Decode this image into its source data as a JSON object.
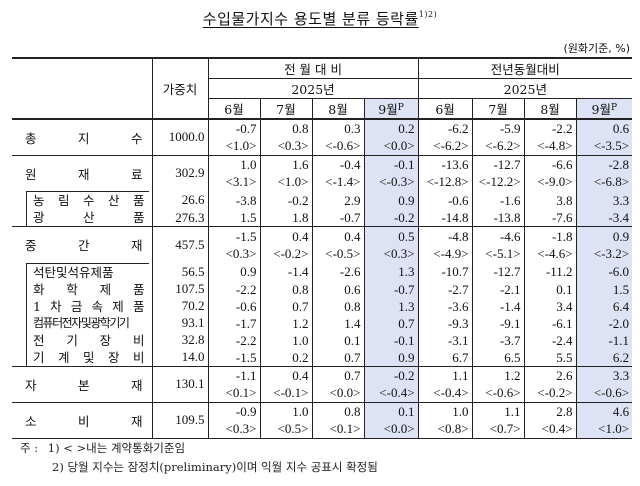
{
  "title": "수입물가지수 용도별 분류 등락률",
  "title_superscript": "1)2)",
  "unit": "(원화기준, %)",
  "header": {
    "weight": "가중치",
    "group_mom": "전 월 대 비",
    "group_yoy": "전년동월대비",
    "year": "2025년",
    "months": [
      "6월",
      "7월",
      "8월",
      "9월"
    ],
    "preliminary_mark": "P"
  },
  "rows": [
    {
      "label": "총지수",
      "chars": [
        "총",
        "지",
        "수"
      ],
      "level": 0,
      "weight": "1000.0",
      "mom": [
        "-0.7",
        "0.8",
        "0.3",
        "0.2"
      ],
      "mom_contract": [
        "<1.0>",
        "<0.3>",
        "<-0.6>",
        "<0.0>"
      ],
      "yoy": [
        "-6.2",
        "-5.9",
        "-2.2",
        "0.6"
      ],
      "yoy_contract": [
        "<-6.2>",
        "<-6.2>",
        "<-4.8>",
        "<-3.5>"
      ]
    },
    {
      "label": "원재료",
      "chars": [
        "원",
        "재",
        "료"
      ],
      "level": 0,
      "weight": "302.9",
      "mom": [
        "1.0",
        "1.6",
        "-0.4",
        "-0.1"
      ],
      "mom_contract": [
        "<3.1>",
        "<1.0>",
        "<-1.4>",
        "<-0.3>"
      ],
      "yoy": [
        "-13.6",
        "-12.7",
        "-6.6",
        "-2.8"
      ],
      "yoy_contract": [
        "<-12.8>",
        "<-12.2>",
        "<-9.0>",
        "<-6.8>"
      ]
    },
    {
      "label": "농림수산품",
      "chars": [
        "농",
        "림",
        "수",
        "산",
        "품"
      ],
      "level": 1,
      "weight": "26.6",
      "mom": [
        "-3.8",
        "-0.2",
        "2.9",
        "0.9"
      ],
      "yoy": [
        "-0.6",
        "-1.6",
        "3.8",
        "3.3"
      ]
    },
    {
      "label": "광산품",
      "chars": [
        "광",
        "산",
        "품"
      ],
      "level": 1,
      "weight": "276.3",
      "mom": [
        "1.5",
        "1.8",
        "-0.7",
        "-0.2"
      ],
      "yoy": [
        "-14.8",
        "-13.8",
        "-7.6",
        "-3.4"
      ]
    },
    {
      "label": "중간재",
      "chars": [
        "중",
        "간",
        "재"
      ],
      "level": 0,
      "weight": "457.5",
      "mom": [
        "-1.5",
        "0.4",
        "0.4",
        "0.5"
      ],
      "mom_contract": [
        "<0.3>",
        "<-0.2>",
        "<-0.5>",
        "<0.3>"
      ],
      "yoy": [
        "-4.8",
        "-4.6",
        "-1.8",
        "0.9"
      ],
      "yoy_contract": [
        "<-4.9>",
        "<-5.1>",
        "<-4.6>",
        "<-3.2>"
      ]
    },
    {
      "label": "석탄및석유제품",
      "chars": [
        "석탄및석유제품"
      ],
      "level": 1,
      "weight": "56.5",
      "mom": [
        "0.9",
        "-1.4",
        "-2.6",
        "1.3"
      ],
      "yoy": [
        "-10.7",
        "-12.7",
        "-11.2",
        "-6.0"
      ]
    },
    {
      "label": "화학제품",
      "chars": [
        "화",
        "학",
        "제",
        "품"
      ],
      "level": 1,
      "weight": "107.5",
      "mom": [
        "-2.2",
        "0.8",
        "0.6",
        "-0.7"
      ],
      "yoy": [
        "-2.7",
        "-2.1",
        "0.1",
        "1.5"
      ]
    },
    {
      "label": "1차금속제품",
      "chars": [
        "1",
        "차",
        "금",
        "속",
        "제",
        "품"
      ],
      "level": 1,
      "weight": "70.2",
      "mom": [
        "-0.6",
        "0.7",
        "0.8",
        "1.3"
      ],
      "yoy": [
        "-3.6",
        "-1.4",
        "3.4",
        "6.4"
      ]
    },
    {
      "label": "컴퓨터전자및광학기기",
      "chars": [
        "컴퓨터전자및광학기기"
      ],
      "level": 1,
      "weight": "93.1",
      "mom": [
        "-1.7",
        "1.2",
        "1.4",
        "0.7"
      ],
      "yoy": [
        "-9.3",
        "-9.1",
        "-6.1",
        "-2.0"
      ]
    },
    {
      "label": "전기장비",
      "chars": [
        "전",
        "기",
        "장",
        "비"
      ],
      "level": 1,
      "weight": "32.8",
      "mom": [
        "-2.2",
        "1.0",
        "0.1",
        "-0.1"
      ],
      "yoy": [
        "-3.1",
        "-3.7",
        "-2.4",
        "-1.1"
      ]
    },
    {
      "label": "기계및장비",
      "chars": [
        "기",
        "계",
        "및",
        "장",
        "비"
      ],
      "level": 1,
      "weight": "14.0",
      "mom": [
        "-1.5",
        "0.2",
        "0.7",
        "0.9"
      ],
      "yoy": [
        "6.7",
        "6.5",
        "5.5",
        "6.2"
      ]
    },
    {
      "label": "자본재",
      "chars": [
        "자",
        "본",
        "재"
      ],
      "level": 0,
      "weight": "130.1",
      "mom": [
        "-1.1",
        "0.4",
        "0.7",
        "-0.2"
      ],
      "mom_contract": [
        "<0.1>",
        "<-0.1>",
        "<0.0>",
        "<-0.4>"
      ],
      "yoy": [
        "1.1",
        "1.2",
        "2.6",
        "3.3"
      ],
      "yoy_contract": [
        "<-0.4>",
        "<-0.6>",
        "<-0.2>",
        "<-0.6>"
      ]
    },
    {
      "label": "소비재",
      "chars": [
        "소",
        "비",
        "재"
      ],
      "level": 0,
      "weight": "109.5",
      "mom": [
        "-0.9",
        "1.0",
        "0.8",
        "0.1"
      ],
      "mom_contract": [
        "<0.3>",
        "<0.5>",
        "<0.1>",
        "<0.0>"
      ],
      "yoy": [
        "1.0",
        "1.1",
        "2.8",
        "4.6"
      ],
      "yoy_contract": [
        "<0.8>",
        "<0.7>",
        "<0.4>",
        "<1.0>"
      ]
    }
  ],
  "notes": {
    "prefix": "주 :",
    "note1": "1) < >내는 계약통화기준임",
    "note2": "2) 당월 지수는 잠정치(preliminary)이며 익월 지수 공표시 확정됨"
  },
  "colors": {
    "highlight": "#dde3f4",
    "border": "#222222"
  }
}
